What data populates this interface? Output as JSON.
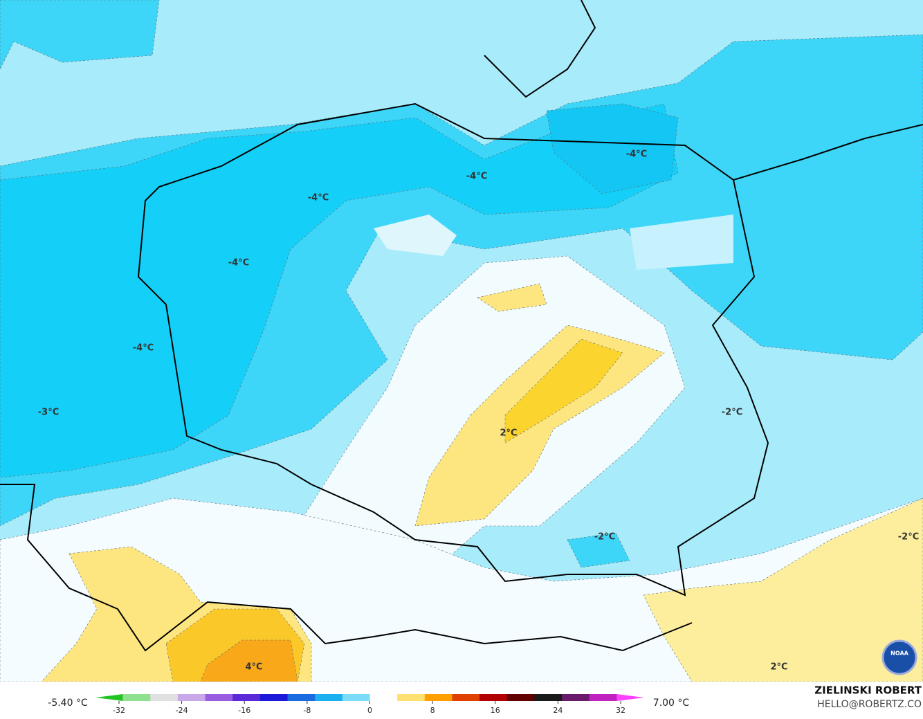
{
  "map": {
    "contour_labels": [
      "-4°C",
      "-4°C",
      "-4°C",
      "-4°C",
      "-4°C",
      "-3°C",
      "-2°C",
      "-2°C",
      "-2°C",
      "2°C",
      "2°C",
      "4°C"
    ],
    "min_label": "-5.40 °C",
    "max_label": "7.00 °C",
    "colorbar": {
      "range": [
        -35,
        35
      ],
      "ticks": [
        -32,
        -24,
        -16,
        -8,
        0,
        8,
        16,
        24,
        32
      ],
      "colors": [
        "#22c322",
        "#8fe08f",
        "#e0e0e0",
        "#c8a8e8",
        "#9a5ce0",
        "#5a2ad8",
        "#1a1ad8",
        "#1a6ae0",
        "#1ab0f0",
        "#7adcf8",
        "#ffffff",
        "#ffe070",
        "#ffa000",
        "#e04000",
        "#b00000",
        "#600000",
        "#1a1a1a",
        "#6a1a6a",
        "#c020c0",
        "#ff40ff"
      ]
    },
    "author": "ZIELINSKI ROBERT",
    "contact": "HELLO@ROBERTZ.CO",
    "logo": "NOAA"
  }
}
